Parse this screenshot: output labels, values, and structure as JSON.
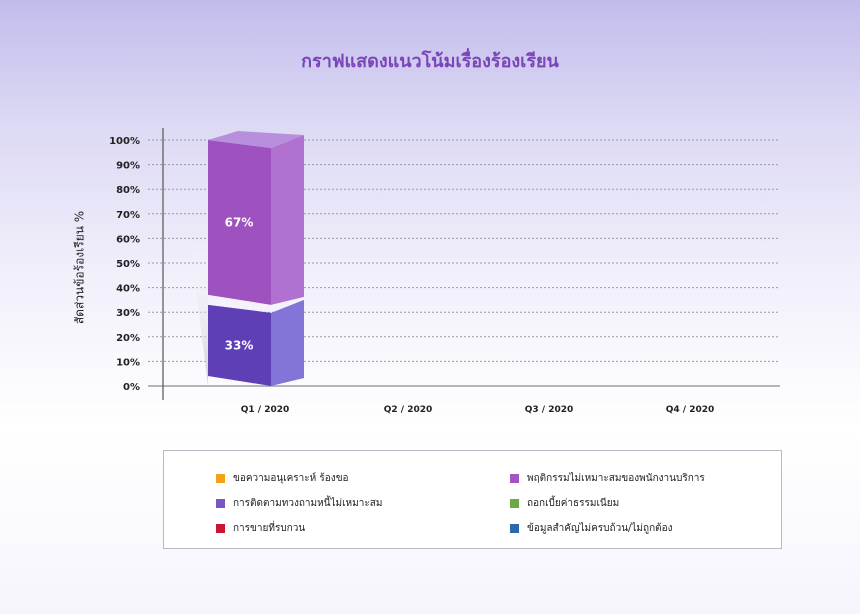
{
  "chart_data": {
    "type": "bar",
    "stacked": true,
    "title": "กราฟแสดงแนวโน้มเรื่องร้องเรียน",
    "ylabel": "สัดส่วนข้อร้องเรียน %",
    "xlabel": "",
    "ylim": [
      0,
      100
    ],
    "y_ticks": [
      "0%",
      "10%",
      "20%",
      "30%",
      "40%",
      "50%",
      "60%",
      "70%",
      "80%",
      "90%",
      "100%"
    ],
    "categories": [
      "Q1 / 2020",
      "Q2 / 2020",
      "Q3 / 2020",
      "Q4 / 2020"
    ],
    "series": [
      {
        "name": "การติดตามทวงถามหนี้ไม่เหมาะสม",
        "values": [
          33,
          null,
          null,
          null
        ],
        "labels": [
          "33%",
          "",
          "",
          ""
        ],
        "color": "#6a3fba"
      },
      {
        "name": "พฤติกรรมไม่เหมาะสมของพนักงานบริการ",
        "values": [
          67,
          null,
          null,
          null
        ],
        "labels": [
          "67%",
          "",
          "",
          ""
        ],
        "color": "#a254c2"
      }
    ],
    "grid": true,
    "legend_placement": "bottom"
  },
  "legend": [
    {
      "label": "ขอความอนุเคราะห์ ร้องขอ",
      "color": "#f5a21b"
    },
    {
      "label": "พฤติกรรมไม่เหมาะสมของพนักงานบริการ",
      "color": "#a254c2"
    },
    {
      "label": "การติดตามทวงถามหนี้ไม่เหมาะสม",
      "color": "#7a55c4"
    },
    {
      "label": "ถอกเบี้ยค่าธรรมเนียม",
      "color": "#6da945"
    },
    {
      "label": "การขายที่รบกวน",
      "color": "#cc1533"
    },
    {
      "label": "ข้อมูลสำคัญไม่ครบถ้วน/ไม่ถูกต้อง",
      "color": "#2a6aaa"
    }
  ]
}
